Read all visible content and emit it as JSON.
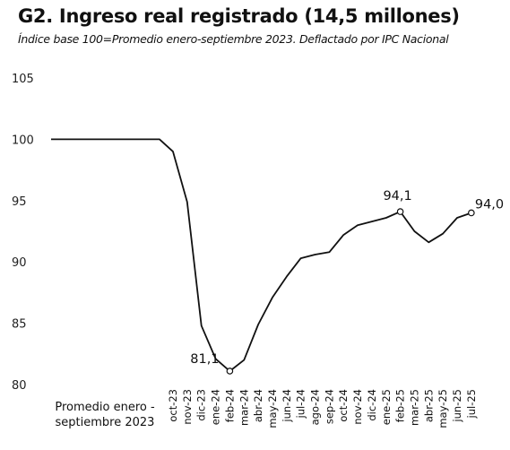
{
  "chart_data": {
    "type": "line",
    "title": "G2. Ingreso real registrado (14,5 millones)",
    "subtitle": "Índice base 100=Promedio enero-septiembre 2023. Deflactado por IPC Nacional",
    "xlabel": "",
    "ylabel": "",
    "ylim": [
      80,
      105
    ],
    "yticks": [
      "80",
      "85",
      "90",
      "95",
      "100",
      "105"
    ],
    "grid": false,
    "line_color": "#111111",
    "first_category_lines": [
      "Promedio enero -",
      "septiembre 2023"
    ],
    "x": [
      "Promedio enero - septiembre 2023",
      "oct-23",
      "nov-23",
      "dic-23",
      "ene-24",
      "feb-24",
      "mar-24",
      "abr-24",
      "may-24",
      "jun-24",
      "jul-24",
      "ago-24",
      "sep-24",
      "oct-24",
      "nov-24",
      "dic-24",
      "ene-25",
      "feb-25",
      "mar-25",
      "abr-25",
      "may-25",
      "jun-25",
      "jul-25"
    ],
    "values": [
      100,
      99.0,
      94.9,
      84.8,
      82.1,
      81.1,
      82.0,
      84.9,
      87.1,
      88.8,
      90.3,
      90.6,
      90.8,
      92.2,
      93.0,
      93.3,
      93.6,
      94.1,
      92.5,
      91.6,
      92.3,
      93.6,
      94.0
    ],
    "annotations": [
      {
        "index": 5,
        "label": "81,1"
      },
      {
        "index": 17,
        "label": "94,1"
      },
      {
        "index": 22,
        "label": "94,0"
      }
    ]
  }
}
